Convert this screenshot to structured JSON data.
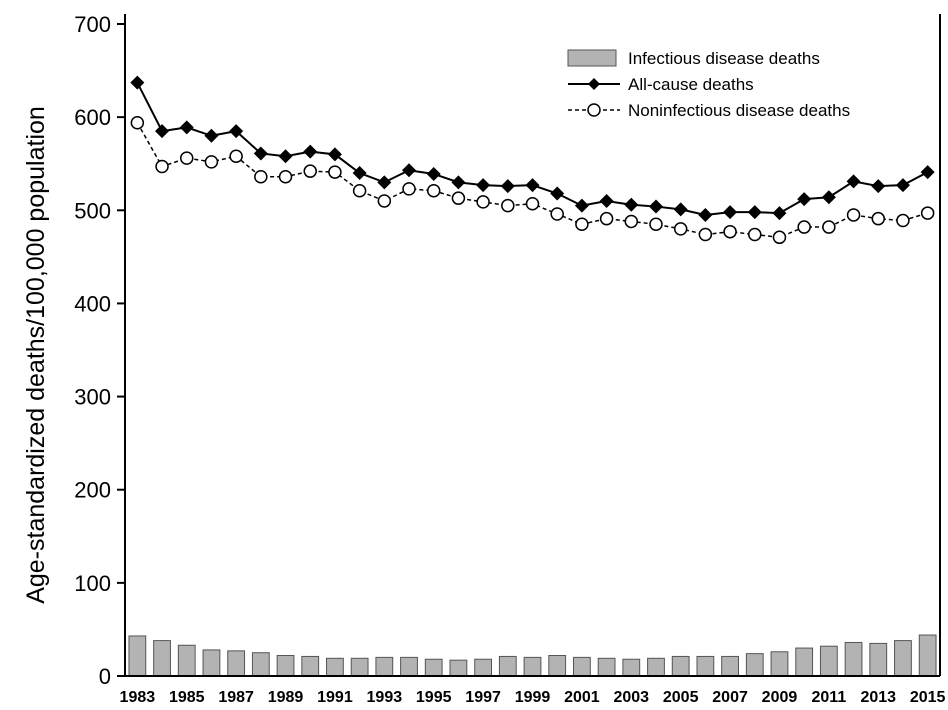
{
  "chart_data": {
    "type": "bar",
    "title": "",
    "xlabel": "",
    "ylabel": "Age-standardized deaths/100,000 population",
    "ylim": [
      0,
      700
    ],
    "yticks": [
      "0",
      "100",
      "200",
      "300",
      "400",
      "500",
      "600",
      "700"
    ],
    "x": [
      1983,
      1984,
      1985,
      1986,
      1987,
      1988,
      1989,
      1990,
      1991,
      1992,
      1993,
      1994,
      1995,
      1996,
      1997,
      1998,
      1999,
      2000,
      2001,
      2002,
      2003,
      2004,
      2005,
      2006,
      2007,
      2008,
      2009,
      2010,
      2011,
      2012,
      2013,
      2014,
      2015
    ],
    "xtick_labels": [
      "1983",
      "1985",
      "1987",
      "1989",
      "1991",
      "1993",
      "1995",
      "1997",
      "1999",
      "2001",
      "2003",
      "2005",
      "2007",
      "2009",
      "2011",
      "2013",
      "2015"
    ],
    "legend_position": "top-right",
    "grid": false,
    "series": [
      {
        "name": "Infectious disease deaths",
        "kind": "bar",
        "color": "#b3b3b3",
        "values": [
          43,
          38,
          33,
          28,
          27,
          25,
          22,
          21,
          19,
          19,
          20,
          20,
          18,
          17,
          18,
          21,
          20,
          22,
          20,
          19,
          18,
          19,
          21,
          21,
          21,
          24,
          26,
          30,
          32,
          36,
          35,
          38,
          44
        ]
      },
      {
        "name": "All-cause deaths",
        "kind": "line",
        "marker": "diamond",
        "color": "#000000",
        "values": [
          637,
          585,
          589,
          580,
          585,
          561,
          558,
          563,
          560,
          540,
          530,
          543,
          539,
          530,
          527,
          526,
          527,
          518,
          505,
          510,
          506,
          504,
          501,
          495,
          498,
          498,
          497,
          512,
          514,
          531,
          526,
          527,
          541
        ]
      },
      {
        "name": "Noninfectious disease deaths",
        "kind": "line",
        "marker": "open-circle",
        "dashed": true,
        "color": "#000000",
        "values": [
          594,
          547,
          556,
          552,
          558,
          536,
          536,
          542,
          541,
          521,
          510,
          523,
          521,
          513,
          509,
          505,
          507,
          496,
          485,
          491,
          488,
          485,
          480,
          474,
          477,
          474,
          471,
          482,
          482,
          495,
          491,
          489,
          497
        ]
      }
    ]
  }
}
